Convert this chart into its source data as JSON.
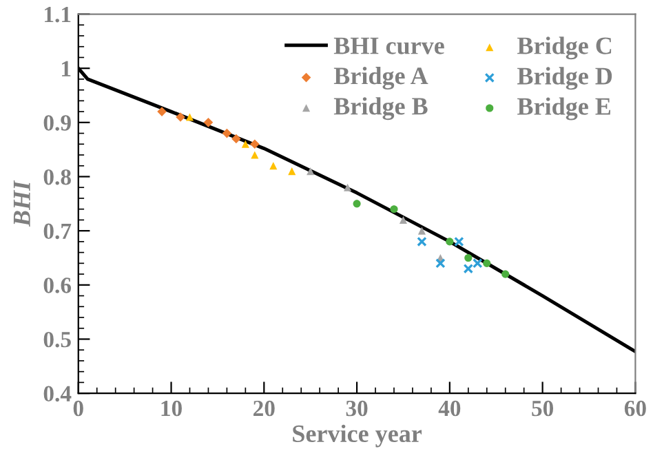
{
  "chart_data": {
    "type": "scatter",
    "xlabel": "Service year",
    "ylabel": "BHI",
    "xlim": [
      0,
      60
    ],
    "ylim": [
      0.4,
      1.1
    ],
    "xticks": [
      0,
      10,
      20,
      30,
      40,
      50,
      60
    ],
    "yticks": [
      0.4,
      0.5,
      0.6,
      0.7,
      0.8,
      0.9,
      1,
      1.1
    ],
    "grid": false,
    "legend": "top right",
    "series": [
      {
        "name": "BHI curve",
        "type": "line",
        "color": "#000000",
        "marker": "none",
        "line_style": "solid",
        "x": [
          0,
          1,
          10,
          20,
          30,
          40,
          50,
          60
        ],
        "values": [
          1.0,
          0.98,
          0.92,
          0.852,
          0.77,
          0.68,
          0.58,
          0.477
        ]
      },
      {
        "name": "Bridge A",
        "color": "#ed7d31",
        "marker": "diamond",
        "x": [
          9,
          11,
          14,
          16,
          17,
          19
        ],
        "values": [
          0.92,
          0.91,
          0.9,
          0.88,
          0.87,
          0.86
        ]
      },
      {
        "name": "Bridge B",
        "color": "#a5a5a5",
        "marker": "triangle",
        "x": [
          25,
          29,
          35,
          37,
          39
        ],
        "values": [
          0.81,
          0.78,
          0.72,
          0.7,
          0.65
        ]
      },
      {
        "name": "Bridge C",
        "color": "#ffc000",
        "marker": "triangle",
        "x": [
          12,
          18,
          19,
          21,
          23
        ],
        "values": [
          0.91,
          0.86,
          0.84,
          0.82,
          0.81
        ]
      },
      {
        "name": "Bridge D",
        "color": "#2e9fd8",
        "marker": "cross",
        "x": [
          37,
          39,
          41,
          42,
          43
        ],
        "values": [
          0.68,
          0.64,
          0.68,
          0.63,
          0.64
        ]
      },
      {
        "name": "Bridge E",
        "color": "#4caf3f",
        "marker": "circle",
        "x": [
          30,
          34,
          40,
          42,
          44,
          46
        ],
        "values": [
          0.75,
          0.74,
          0.68,
          0.65,
          0.64,
          0.62
        ]
      }
    ]
  }
}
